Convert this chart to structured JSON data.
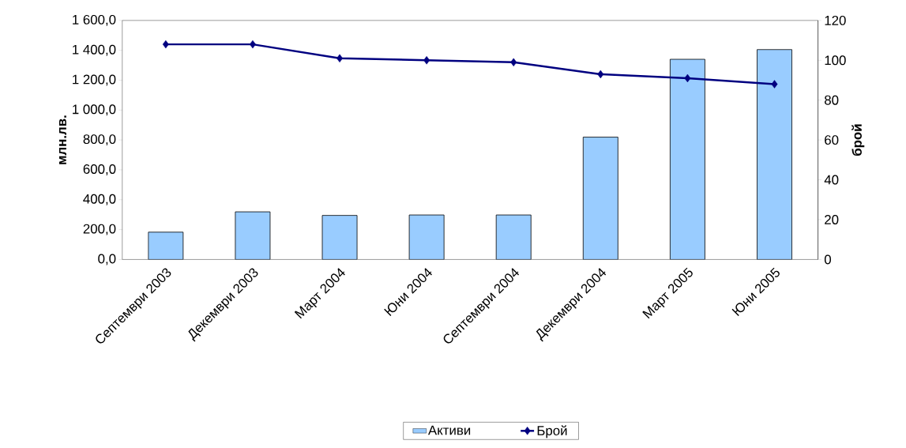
{
  "chart_data": {
    "type": "bar",
    "ylabel": "млн.лв.",
    "y2label": "брой",
    "categories": [
      "Септември 2003",
      "Декември 2003",
      "Март 2004",
      "Юни 2004",
      "Септември 2004",
      "Декември 2004",
      "Март 2005",
      "Юни 2005"
    ],
    "series": [
      {
        "name": "Активи",
        "color": "#99ccff",
        "values": [
          183,
          319,
          295,
          298,
          298,
          819,
          1340,
          1405
        ]
      },
      {
        "name": "Брой",
        "type": "line",
        "axis": "y2",
        "color": "#000080",
        "marker": "diamond",
        "values": [
          108,
          108,
          101,
          100,
          99,
          93,
          91,
          88
        ]
      }
    ],
    "ylim": [
      0,
      1600
    ],
    "yticks": [
      {
        "value": 0,
        "label": "0,0"
      },
      {
        "value": 200,
        "label": "200,0"
      },
      {
        "value": 400,
        "label": "400,0"
      },
      {
        "value": 600,
        "label": "600,0"
      },
      {
        "value": 800,
        "label": "800,0"
      },
      {
        "value": 1000,
        "label": "1 000,0"
      },
      {
        "value": 1200,
        "label": "1 200,0"
      },
      {
        "value": 1400,
        "label": "1 400,0"
      },
      {
        "value": 1600,
        "label": "1 600,0"
      }
    ],
    "y2lim": [
      0,
      120
    ],
    "y2ticks": [
      0,
      20,
      40,
      60,
      80,
      100,
      120
    ],
    "grid": false,
    "legend": "bottom"
  }
}
